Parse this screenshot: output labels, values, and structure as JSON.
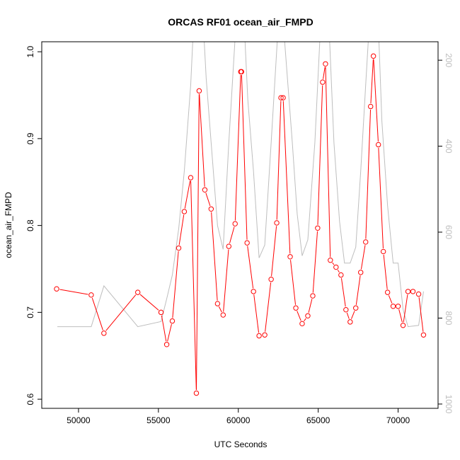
{
  "chart_data": {
    "type": "line",
    "title": "ORCAS RF01 ocean_air_FMPD",
    "xlabel": "UTC Seconds",
    "ylabel": "ocean_air_FMPD",
    "xlim": [
      47700,
      72500
    ],
    "ylim": [
      0.5895,
      1.0115
    ],
    "y2lim": [
      1010,
      157
    ],
    "grid": false,
    "x_ticks": [
      50000,
      55000,
      60000,
      65000,
      70000
    ],
    "x_tick_labels": [
      "50000",
      "55000",
      "60000",
      "65000",
      "70000"
    ],
    "y_ticks": [
      0.6,
      0.7,
      0.8,
      0.9,
      1.0
    ],
    "y_tick_labels": [
      "0.6",
      "0.7",
      "0.8",
      "0.9",
      "1.0"
    ],
    "y2_ticks": [
      200,
      400,
      600,
      800,
      1000
    ],
    "y2_tick_labels": [
      "200",
      "400",
      "600",
      "800",
      "1000"
    ],
    "colors": {
      "series": "#ff0000",
      "pressure": "#bebebe",
      "axis": "#000000",
      "y2_labels": "#bebebe"
    },
    "series": [
      {
        "name": "ocean_air_FMPD",
        "axis": "left",
        "x": [
          48630,
          50795,
          51590,
          53710,
          55165,
          55520,
          55870,
          56270,
          56620,
          57020,
          57375,
          57550,
          57905,
          58300,
          58700,
          59050,
          59405,
          59800,
          60155,
          60200,
          60550,
          60950,
          61300,
          61655,
          62055,
          62405,
          62670,
          62805,
          63245,
          63600,
          63995,
          64350,
          64660,
          64965,
          65275,
          65455,
          65760,
          66115,
          66425,
          66735,
          67000,
          67350,
          67660,
          67970,
          68280,
          68455,
          68765,
          69075,
          69340,
          69690,
          70000,
          70310,
          70620,
          70930,
          71285,
          71590
        ],
        "y": [
          0.727,
          0.72,
          0.676,
          0.723,
          0.7,
          0.663,
          0.69,
          0.774,
          0.816,
          0.855,
          0.607,
          0.955,
          0.841,
          0.819,
          0.71,
          0.697,
          0.776,
          0.802,
          0.977,
          0.977,
          0.78,
          0.724,
          0.673,
          0.674,
          0.738,
          0.803,
          0.947,
          0.947,
          0.764,
          0.705,
          0.687,
          0.696,
          0.719,
          0.797,
          0.965,
          0.986,
          0.76,
          0.752,
          0.743,
          0.703,
          0.689,
          0.705,
          0.746,
          0.781,
          0.937,
          0.995,
          0.893,
          0.77,
          0.723,
          0.707,
          0.707,
          0.685,
          0.724,
          0.724,
          0.721,
          0.674
        ]
      },
      {
        "name": "pressure",
        "axis": "right",
        "x": [
          48675,
          50795,
          51590,
          53710,
          55165,
          55520,
          55870,
          56270,
          56620,
          57020,
          57195,
          57815,
          57990,
          58300,
          58700,
          59050,
          59405,
          59845,
          60375,
          60595,
          60950,
          61300,
          61655,
          62055,
          62495,
          62825,
          63380,
          63685,
          63995,
          64350,
          64790,
          65145,
          65675,
          65985,
          66335,
          66645,
          67000,
          67350,
          67660,
          67970,
          68190,
          68765,
          68985,
          69340,
          69690,
          70000,
          70310,
          70620,
          71285,
          71590
        ],
        "y": [
          820,
          820,
          725,
          820,
          808,
          755,
          700,
          592,
          458,
          258,
          120,
          120,
          242,
          392,
          585,
          640,
          392,
          120,
          120,
          292,
          458,
          660,
          630,
          392,
          120,
          120,
          392,
          558,
          655,
          618,
          392,
          120,
          120,
          392,
          575,
          672,
          672,
          635,
          458,
          258,
          120,
          120,
          342,
          538,
          672,
          672,
          780,
          820,
          817,
          738
        ]
      }
    ]
  }
}
